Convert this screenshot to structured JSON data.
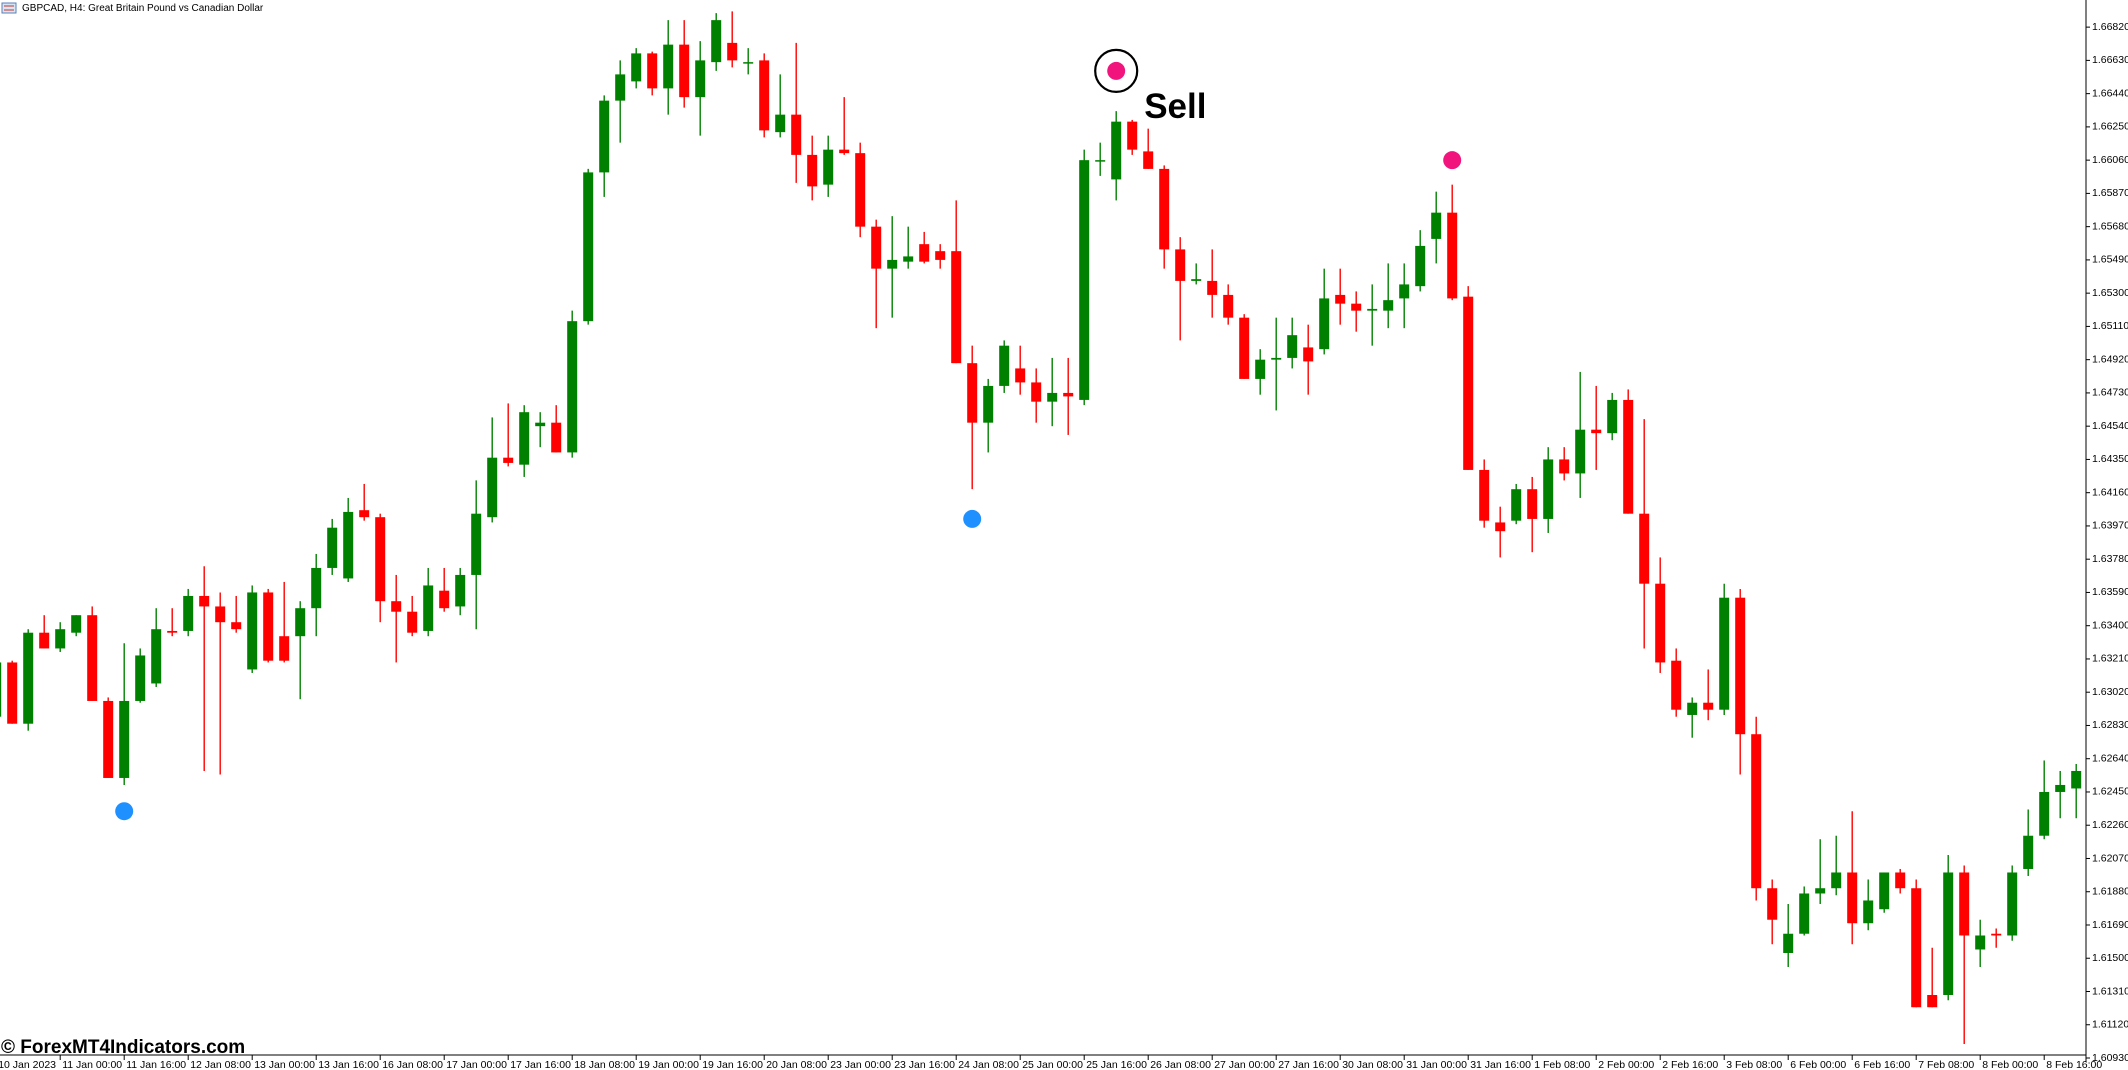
{
  "chart_data": {
    "type": "candlestick",
    "title": "GBPCAD, H4:  Great Britain Pound vs Canadian Dollar",
    "annotation": "Sell",
    "watermark": "© ForexMT4Indicators.com",
    "up_color": "#008000",
    "down_color": "#ff0000",
    "ylim": [
      1.6093,
      1.66975
    ],
    "yticks": [
      {
        "value": 1.6682,
        "label": "1.66820"
      },
      {
        "value": 1.6663,
        "label": "1.66630"
      },
      {
        "value": 1.6644,
        "label": "1.66440"
      },
      {
        "value": 1.6625,
        "label": "1.66250"
      },
      {
        "value": 1.6606,
        "label": "1.66060"
      },
      {
        "value": 1.6587,
        "label": "1.65870"
      },
      {
        "value": 1.6568,
        "label": "1.65680"
      },
      {
        "value": 1.6549,
        "label": "1.65490"
      },
      {
        "value": 1.653,
        "label": "1.65300"
      },
      {
        "value": 1.6511,
        "label": "1.65110"
      },
      {
        "value": 1.6492,
        "label": "1.64920"
      },
      {
        "value": 1.6473,
        "label": "1.64730"
      },
      {
        "value": 1.6454,
        "label": "1.64540"
      },
      {
        "value": 1.6435,
        "label": "1.64350"
      },
      {
        "value": 1.6416,
        "label": "1.64160"
      },
      {
        "value": 1.6397,
        "label": "1.63970"
      },
      {
        "value": 1.6378,
        "label": "1.63780"
      },
      {
        "value": 1.6359,
        "label": "1.63590"
      },
      {
        "value": 1.634,
        "label": "1.63400"
      },
      {
        "value": 1.6321,
        "label": "1.63210"
      },
      {
        "value": 1.6302,
        "label": "1.63020"
      },
      {
        "value": 1.6283,
        "label": "1.62830"
      },
      {
        "value": 1.6264,
        "label": "1.62640"
      },
      {
        "value": 1.6245,
        "label": "1.62450"
      },
      {
        "value": 1.6226,
        "label": "1.62260"
      },
      {
        "value": 1.6207,
        "label": "1.62070"
      },
      {
        "value": 1.6188,
        "label": "1.61880"
      },
      {
        "value": 1.6169,
        "label": "1.61690"
      },
      {
        "value": 1.615,
        "label": "1.61500"
      },
      {
        "value": 1.6131,
        "label": "1.61310"
      },
      {
        "value": 1.6112,
        "label": "1.61120"
      },
      {
        "value": 1.6093,
        "label": "1.60930"
      }
    ],
    "categories": [
      "10 Jan 2023",
      null,
      null,
      null,
      "11 Jan 00:00",
      null,
      null,
      null,
      "11 Jan 16:00",
      null,
      null,
      null,
      "12 Jan 08:00",
      null,
      null,
      null,
      "13 Jan 00:00",
      null,
      null,
      null,
      "13 Jan 16:00",
      null,
      null,
      null,
      "16 Jan 08:00",
      null,
      null,
      null,
      "17 Jan 00:00",
      null,
      null,
      null,
      "17 Jan 16:00",
      null,
      null,
      null,
      "18 Jan 08:00",
      null,
      null,
      null,
      "19 Jan 00:00",
      null,
      null,
      null,
      "19 Jan 16:00",
      null,
      null,
      null,
      "20 Jan 08:00",
      null,
      null,
      null,
      "23 Jan 00:00",
      null,
      null,
      null,
      "23 Jan 16:00",
      null,
      null,
      null,
      "24 Jan 08:00",
      null,
      null,
      null,
      "25 Jan 00:00",
      null,
      null,
      null,
      "25 Jan 16:00",
      null,
      null,
      null,
      "26 Jan 08:00",
      null,
      null,
      null,
      "27 Jan 00:00",
      null,
      null,
      null,
      "27 Jan 16:00",
      null,
      null,
      null,
      "30 Jan 08:00",
      null,
      null,
      null,
      "31 Jan 00:00",
      null,
      null,
      null,
      "31 Jan 16:00",
      null,
      null,
      null,
      "1 Feb 08:00",
      null,
      null,
      null,
      "2 Feb 00:00",
      null,
      null,
      null,
      "2 Feb 16:00",
      null,
      null,
      null,
      "3 Feb 08:00",
      null,
      null,
      null,
      "6 Feb 00:00",
      null,
      null,
      null,
      "6 Feb 16:00",
      null,
      null,
      null,
      "7 Feb 08:00",
      null,
      null,
      null,
      "8 Feb 00:00",
      null,
      null,
      null,
      "8 Feb 16:00",
      null,
      null
    ],
    "open": [
      1.6288,
      1.6319,
      1.6284,
      1.6336,
      1.6327,
      1.6336,
      1.6346,
      1.6297,
      1.6253,
      1.6297,
      1.6307,
      1.6337,
      1.6337,
      1.6357,
      1.6351,
      1.6342,
      1.6315,
      1.6359,
      1.6334,
      1.6334,
      1.635,
      1.6373,
      1.6367,
      1.6406,
      1.6402,
      1.6354,
      1.6348,
      1.6337,
      1.636,
      1.6351,
      1.6369,
      1.6402,
      1.6436,
      1.6432,
      1.6454,
      1.6456,
      1.6439,
      1.6514,
      1.6599,
      1.664,
      1.6651,
      1.6667,
      1.6647,
      1.6672,
      1.6642,
      1.6662,
      1.6673,
      1.6662,
      1.6663,
      1.6622,
      1.6632,
      1.6609,
      1.6592,
      1.6612,
      1.661,
      1.6568,
      1.6544,
      1.6548,
      1.6558,
      1.6554,
      1.6554,
      1.649,
      1.6456,
      1.6477,
      1.6487,
      1.6479,
      1.6468,
      1.6473,
      1.6469,
      1.6606,
      1.6595,
      1.6628,
      1.6611,
      1.6601,
      1.6555,
      1.6537,
      1.6537,
      1.6529,
      1.6516,
      1.6481,
      1.6492,
      1.6493,
      1.6499,
      1.6498,
      1.6529,
      1.6524,
      1.652,
      1.652,
      1.6527,
      1.6534,
      1.6561,
      1.6576,
      1.6528,
      1.6429,
      1.6399,
      1.64,
      1.6418,
      1.6401,
      1.6435,
      1.6427,
      1.6452,
      1.645,
      1.6469,
      1.6404,
      1.6364,
      1.632,
      1.6289,
      1.6296,
      1.6292,
      1.6356,
      1.6278,
      1.619,
      1.6153,
      1.6164,
      1.6187,
      1.619,
      1.6199,
      1.617,
      1.6178,
      1.6199,
      1.619,
      1.6129,
      1.6129,
      1.6199,
      1.6155,
      1.6164,
      1.6163,
      1.6201,
      1.622,
      1.6245,
      1.6247
    ],
    "high": [
      1.632,
      1.632,
      1.6338,
      1.6346,
      1.6342,
      1.6346,
      1.6351,
      1.6299,
      1.633,
      1.6327,
      1.635,
      1.635,
      1.6361,
      1.6374,
      1.6359,
      1.6357,
      1.6363,
      1.6361,
      1.6365,
      1.6354,
      1.6381,
      1.6401,
      1.6413,
      1.6421,
      1.6404,
      1.6369,
      1.6357,
      1.6373,
      1.6373,
      1.6373,
      1.6423,
      1.6459,
      1.6467,
      1.6466,
      1.6462,
      1.6466,
      1.652,
      1.6601,
      1.6643,
      1.6663,
      1.667,
      1.6668,
      1.6686,
      1.6686,
      1.6674,
      1.669,
      1.6691,
      1.667,
      1.6667,
      1.6655,
      1.6673,
      1.662,
      1.662,
      1.6642,
      1.6616,
      1.6572,
      1.6574,
      1.6568,
      1.6565,
      1.6558,
      1.6583,
      1.65,
      1.6481,
      1.6503,
      1.65,
      1.6487,
      1.6493,
      1.6493,
      1.6612,
      1.6616,
      1.6634,
      1.6629,
      1.6624,
      1.6603,
      1.6562,
      1.6547,
      1.6555,
      1.6535,
      1.6518,
      1.6498,
      1.6516,
      1.6516,
      1.6512,
      1.6544,
      1.6544,
      1.6531,
      1.6535,
      1.6547,
      1.6547,
      1.6566,
      1.6588,
      1.6592,
      1.6534,
      1.6435,
      1.6408,
      1.6421,
      1.6425,
      1.6442,
      1.6442,
      1.6485,
      1.6477,
      1.6473,
      1.6475,
      1.6458,
      1.6379,
      1.6327,
      1.6299,
      1.6315,
      1.6364,
      1.6361,
      1.6288,
      1.6195,
      1.6181,
      1.6191,
      1.6218,
      1.622,
      1.6234,
      1.6195,
      1.6199,
      1.6201,
      1.6195,
      1.6156,
      1.6209,
      1.6203,
      1.6172,
      1.6167,
      1.6203,
      1.6235,
      1.6263,
      1.6257,
      1.6261
    ],
    "low": [
      1.6284,
      1.6284,
      1.628,
      1.6327,
      1.6325,
      1.6334,
      1.6297,
      1.6253,
      1.6249,
      1.6296,
      1.6305,
      1.6334,
      1.6334,
      1.6257,
      1.6255,
      1.6336,
      1.6313,
      1.6319,
      1.6319,
      1.6298,
      1.6334,
      1.6369,
      1.6365,
      1.64,
      1.6342,
      1.6319,
      1.6334,
      1.6334,
      1.6348,
      1.6346,
      1.6338,
      1.6399,
      1.6431,
      1.6425,
      1.6442,
      1.6439,
      1.6436,
      1.6512,
      1.6585,
      1.6616,
      1.6647,
      1.6643,
      1.6632,
      1.6636,
      1.662,
      1.6657,
      1.6659,
      1.6655,
      1.6619,
      1.6619,
      1.6593,
      1.6583,
      1.6585,
      1.6609,
      1.6562,
      1.651,
      1.6516,
      1.6544,
      1.6547,
      1.6544,
      1.649,
      1.6418,
      1.6439,
      1.6473,
      1.6472,
      1.6456,
      1.6454,
      1.6449,
      1.6466,
      1.6597,
      1.6583,
      1.6609,
      1.6601,
      1.6544,
      1.6503,
      1.6535,
      1.6516,
      1.6512,
      1.6481,
      1.6472,
      1.6463,
      1.6487,
      1.6472,
      1.6495,
      1.6512,
      1.6508,
      1.65,
      1.651,
      1.651,
      1.6531,
      1.6547,
      1.6526,
      1.6429,
      1.6396,
      1.6379,
      1.6398,
      1.6382,
      1.6393,
      1.6423,
      1.6413,
      1.6429,
      1.6446,
      1.6404,
      1.6327,
      1.6313,
      1.6288,
      1.6276,
      1.6286,
      1.6289,
      1.6255,
      1.6183,
      1.6158,
      1.6145,
      1.6163,
      1.6181,
      1.6186,
      1.6158,
      1.6166,
      1.6176,
      1.6187,
      1.6122,
      1.6122,
      1.6126,
      1.6101,
      1.6145,
      1.6156,
      1.616,
      1.6197,
      1.6218,
      1.623,
      1.623
    ],
    "close": [
      1.6319,
      1.6284,
      1.6336,
      1.6327,
      1.6338,
      1.6346,
      1.6297,
      1.6253,
      1.6297,
      1.6323,
      1.6338,
      1.6336,
      1.6357,
      1.6351,
      1.6342,
      1.6338,
      1.6359,
      1.632,
      1.632,
      1.635,
      1.6373,
      1.6396,
      1.6405,
      1.6402,
      1.6354,
      1.6348,
      1.6336,
      1.6363,
      1.635,
      1.6369,
      1.6404,
      1.6436,
      1.6433,
      1.6462,
      1.6456,
      1.6439,
      1.6514,
      1.6599,
      1.664,
      1.6655,
      1.6667,
      1.6647,
      1.6672,
      1.6642,
      1.6663,
      1.6686,
      1.6663,
      1.6662,
      1.6623,
      1.6632,
      1.6609,
      1.6591,
      1.6612,
      1.661,
      1.6568,
      1.6544,
      1.6549,
      1.6551,
      1.6548,
      1.6549,
      1.649,
      1.6456,
      1.6477,
      1.65,
      1.6479,
      1.6468,
      1.6473,
      1.6471,
      1.6606,
      1.6606,
      1.6628,
      1.6612,
      1.6601,
      1.6555,
      1.6537,
      1.6538,
      1.6529,
      1.6516,
      1.6481,
      1.6492,
      1.6493,
      1.6506,
      1.6491,
      1.6527,
      1.6524,
      1.652,
      1.6521,
      1.6526,
      1.6535,
      1.6557,
      1.6576,
      1.6527,
      1.6429,
      1.64,
      1.6394,
      1.6418,
      1.6401,
      1.6435,
      1.6427,
      1.6452,
      1.645,
      1.6469,
      1.6404,
      1.6364,
      1.6319,
      1.6292,
      1.6296,
      1.6292,
      1.6356,
      1.6278,
      1.619,
      1.6172,
      1.6164,
      1.6187,
      1.619,
      1.6199,
      1.617,
      1.6183,
      1.6199,
      1.619,
      1.6122,
      1.6122,
      1.6199,
      1.6163,
      1.6163,
      1.6163,
      1.6199,
      1.622,
      1.6245,
      1.6249,
      1.6257
    ],
    "markers": [
      {
        "x": 8,
        "value": 1.6234,
        "color": "#1e90ff"
      },
      {
        "x": 61,
        "value": 1.6401,
        "color": "#1e90ff"
      },
      {
        "x": 70,
        "value": 1.6657,
        "color": "#f0147c",
        "ring": true
      },
      {
        "x": 91,
        "value": 1.6606,
        "color": "#f0147c"
      }
    ]
  }
}
